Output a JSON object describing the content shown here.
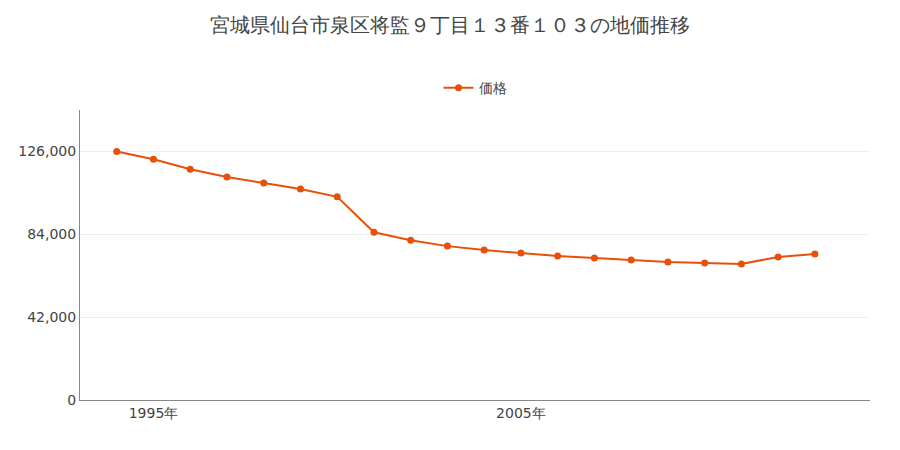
{
  "chart_data": {
    "type": "line",
    "title": "宮城県仙台市泉区将監９丁目１３番１０３の地価推移",
    "x": [
      1994,
      1995,
      1996,
      1997,
      1998,
      1999,
      2000,
      2001,
      2002,
      2003,
      2004,
      2005,
      2006,
      2007,
      2008,
      2009,
      2010,
      2011,
      2012,
      2013
    ],
    "series": [
      {
        "name": "価格",
        "color": "#e8500a",
        "marker": "circle",
        "values": [
          126000,
          122000,
          117000,
          113000,
          110000,
          107000,
          103000,
          85000,
          81000,
          78000,
          76000,
          74500,
          73000,
          72000,
          71000,
          70000,
          69500,
          69000,
          72500,
          74000
        ]
      }
    ],
    "xlim": [
      1993.0,
      2014.5
    ],
    "xticks": [
      {
        "value": 1995,
        "label": "1995年"
      },
      {
        "value": 2005,
        "label": "2005年"
      }
    ],
    "ylim": [
      0,
      147000
    ],
    "yticks": [
      0,
      {
        "value": 42000,
        "label": "42,000"
      },
      {
        "value": 84000,
        "label": "84,000"
      },
      {
        "value": 126000,
        "label": "126,000"
      }
    ],
    "grid": "y",
    "legend": "top"
  }
}
